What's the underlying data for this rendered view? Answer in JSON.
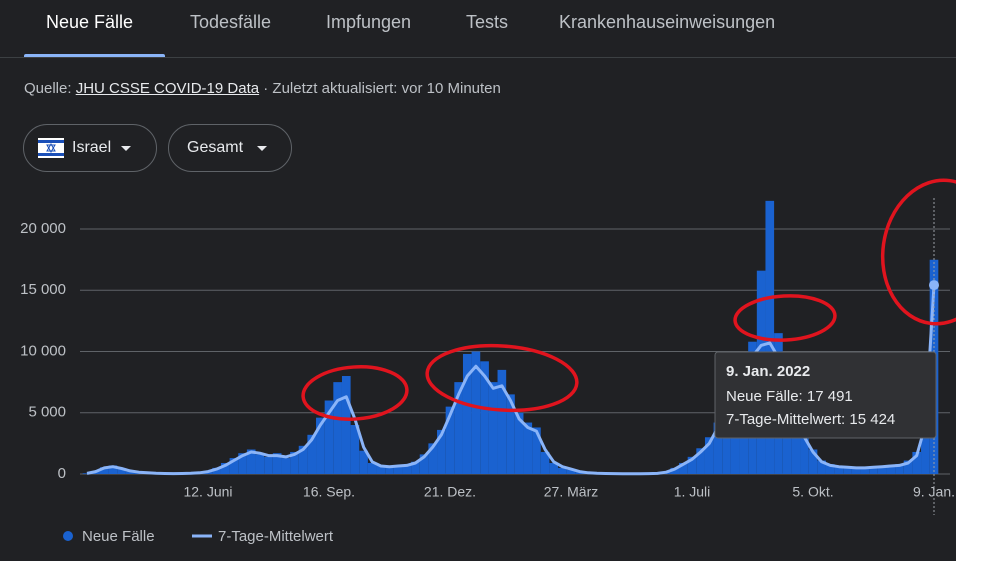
{
  "tabs": [
    "Neue Fälle",
    "Todesfälle",
    "Impfungen",
    "Tests",
    "Krankenhauseinweisungen"
  ],
  "source": {
    "prefix": "Quelle:",
    "link": "JHU CSSE COVID-19 Data",
    "suffix": "· Zuletzt aktualisiert: vor 10 Minuten"
  },
  "filters": {
    "country": "Israel",
    "scope": "Gesamt"
  },
  "chart_data": {
    "type": "bar",
    "categories": [
      null,
      null,
      null,
      null,
      null,
      null,
      null,
      null,
      null,
      null,
      null,
      null,
      null,
      null,
      "12. Juni",
      null,
      null,
      null,
      null,
      null,
      null,
      null,
      null,
      null,
      null,
      null,
      null,
      null,
      "16. Sep.",
      null,
      null,
      null,
      null,
      null,
      null,
      null,
      null,
      null,
      null,
      null,
      null,
      null,
      "21. Dez.",
      null,
      null,
      null,
      null,
      null,
      null,
      null,
      null,
      null,
      null,
      null,
      null,
      null,
      "27. März",
      null,
      null,
      null,
      null,
      null,
      null,
      null,
      null,
      null,
      null,
      null,
      null,
      null,
      "1. Juli",
      null,
      null,
      null,
      null,
      null,
      null,
      null,
      null,
      null,
      null,
      null,
      null,
      null,
      "5. Okt.",
      null,
      null,
      null,
      null,
      null,
      null,
      null,
      null,
      null,
      null,
      null,
      null,
      null,
      "9. Jan."
    ],
    "series": [
      {
        "name": "Neue Fälle",
        "type": "bar",
        "color": "#1a62d0",
        "values": [
          60,
          250,
          550,
          700,
          400,
          200,
          140,
          90,
          50,
          30,
          20,
          50,
          70,
          120,
          250,
          500,
          900,
          1300,
          1700,
          2000,
          1600,
          1400,
          1700,
          1300,
          1800,
          2300,
          3200,
          4600,
          6000,
          7500,
          8000,
          4000,
          1900,
          900,
          700,
          550,
          700,
          750,
          1000,
          1600,
          2500,
          3600,
          5500,
          7500,
          9800,
          10000,
          9200,
          7500,
          8500,
          6500,
          5000,
          4200,
          3800,
          1800,
          900,
          500,
          350,
          180,
          90,
          50,
          30,
          25,
          15,
          18,
          25,
          40,
          70,
          200,
          500,
          900,
          1400,
          2100,
          3000,
          4200,
          6000,
          7800,
          9500,
          10800,
          16600,
          22300,
          11500,
          8500,
          5500,
          3200,
          2000,
          1100,
          800,
          650,
          600,
          550,
          520,
          600,
          650,
          700,
          800,
          1100,
          1800,
          5000,
          17491
        ]
      },
      {
        "name": "7-Tage-Mittelwert",
        "type": "line",
        "color": "#8ab4f8",
        "values": [
          50,
          200,
          500,
          600,
          450,
          250,
          150,
          100,
          60,
          40,
          30,
          40,
          60,
          100,
          200,
          400,
          700,
          1100,
          1500,
          1800,
          1700,
          1500,
          1500,
          1400,
          1600,
          2000,
          2800,
          4000,
          5000,
          6000,
          6300,
          4500,
          2200,
          1000,
          650,
          600,
          650,
          700,
          900,
          1400,
          2200,
          3200,
          4800,
          6500,
          8000,
          8800,
          8000,
          7000,
          7200,
          6000,
          4500,
          3800,
          3500,
          2000,
          1000,
          600,
          400,
          200,
          100,
          60,
          40,
          30,
          20,
          20,
          20,
          30,
          50,
          150,
          400,
          800,
          1200,
          1800,
          2500,
          3800,
          5200,
          6800,
          8200,
          9600,
          10500,
          10700,
          9500,
          7500,
          5000,
          3000,
          1800,
          1000,
          700,
          600,
          550,
          500,
          500,
          550,
          600,
          650,
          700,
          900,
          1500,
          4000,
          15424
        ]
      }
    ],
    "ylim": [
      0,
      22500
    ],
    "yticks": [
      0,
      {
        "value": 5000,
        "label": "5 000"
      },
      {
        "value": 10000,
        "label": "10 000"
      },
      {
        "value": 15000,
        "label": "15 000"
      },
      {
        "value": 20000,
        "label": "20 000"
      }
    ],
    "grid": true,
    "tooltip": {
      "title": "9. Jan. 2022",
      "lines": [
        "Neue Fälle: 17 491",
        "7-Tage-Mittelwert: 15 424"
      ]
    }
  }
}
